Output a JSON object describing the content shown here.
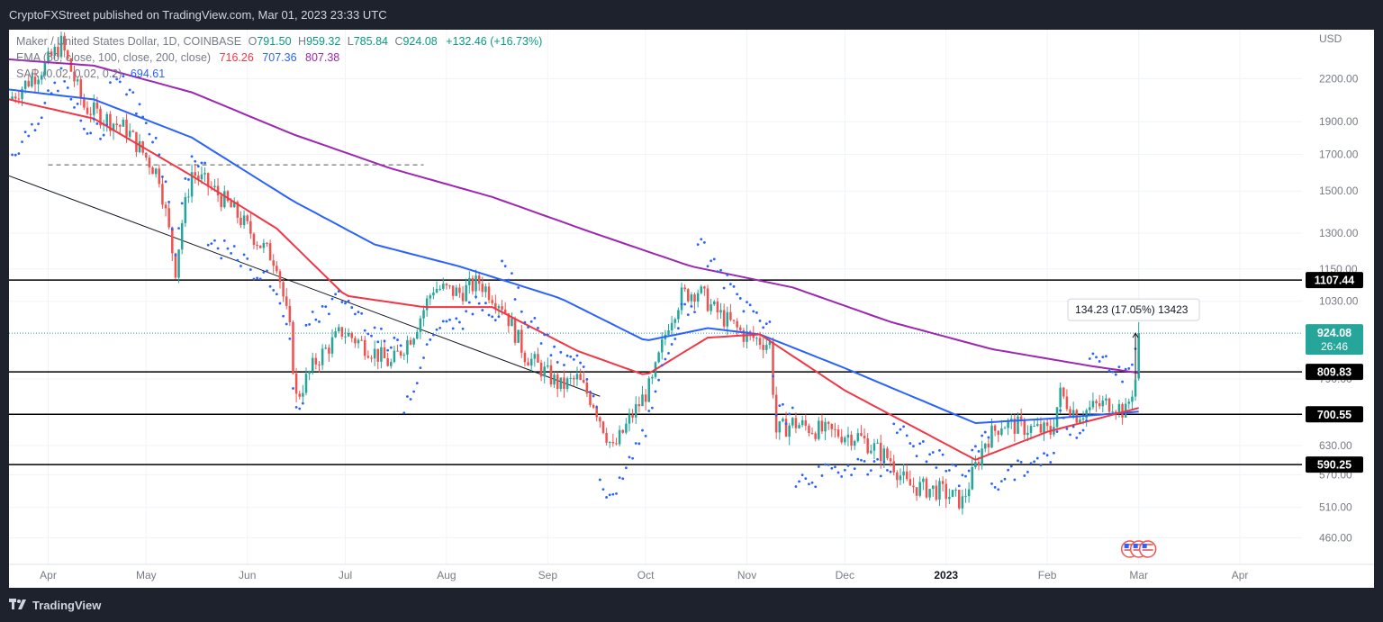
{
  "header": {
    "published_line": "CryptoFXStreet published on TradingView.com, Mar 01, 2023 23:33 UTC"
  },
  "footer": {
    "brand": "TradingView"
  },
  "colors": {
    "up": "#26a69a",
    "down": "#ef5350",
    "ema50": "#f23645",
    "ema100": "#2962ff",
    "ema200": "#9c27b0",
    "sar": "#2962ff",
    "level_line": "#000000",
    "text": "#131722",
    "muted": "#787b86"
  },
  "chart_data": {
    "type": "candlestick",
    "symbol_line": {
      "name": "Maker / United States Dollar, 1D, COINBASE",
      "o_label": "O",
      "o": "791.50",
      "h_label": "H",
      "h": "959.32",
      "l_label": "L",
      "l": "785.84",
      "c_label": "C",
      "c": "924.08",
      "change": "+132.46 (+16.73%)"
    },
    "indicators": [
      {
        "label": "EMA (50, close, 100, close, 200, close)",
        "values": [
          "716.26",
          "707.36",
          "807.38"
        ],
        "colors": [
          "#f23645",
          "#2962ff",
          "#9c27b0"
        ]
      },
      {
        "label": "SAR (0.02, 0.02, 0.2)",
        "values": [
          "694.61"
        ],
        "colors": [
          "#2962ff"
        ]
      }
    ],
    "currency": "USD",
    "y_scale": "log",
    "ylim": [
      420,
      2600
    ],
    "x_start_date": "2022-03-20",
    "x_end_date": "2023-04-20",
    "y_ticks": [
      "460.00",
      "510.00",
      "570.00",
      "630.00",
      "790.00",
      "1030.00",
      "1150.00",
      "1300.00",
      "1500.00",
      "1700.00",
      "1900.00",
      "2200.00"
    ],
    "x_ticks": [
      {
        "label": "Apr",
        "date": "2022-04-01"
      },
      {
        "label": "May",
        "date": "2022-05-01"
      },
      {
        "label": "Jun",
        "date": "2022-06-01"
      },
      {
        "label": "Jul",
        "date": "2022-07-01"
      },
      {
        "label": "Aug",
        "date": "2022-08-01"
      },
      {
        "label": "Sep",
        "date": "2022-09-01"
      },
      {
        "label": "Oct",
        "date": "2022-10-01"
      },
      {
        "label": "Nov",
        "date": "2022-11-01"
      },
      {
        "label": "Dec",
        "date": "2022-12-01"
      },
      {
        "label": "2023",
        "date": "2023-01-01",
        "bold": true
      },
      {
        "label": "Feb",
        "date": "2023-02-01"
      },
      {
        "label": "Mar",
        "date": "2023-03-01"
      },
      {
        "label": "Apr",
        "date": "2023-04-01"
      }
    ],
    "horizontal_levels": [
      {
        "value": 1107.44,
        "label": "1107.44"
      },
      {
        "value": 809.83,
        "label": "809.83"
      },
      {
        "value": 700.55,
        "label": "700.55"
      },
      {
        "value": 590.25,
        "label": "590.25"
      }
    ],
    "last_price": {
      "value": 924.08,
      "label": "924.08",
      "countdown": "26:46"
    },
    "dashed_level": {
      "value": 1640,
      "from": "2022-04-01",
      "to": "2022-07-25"
    },
    "trendline": {
      "from": {
        "date": "2022-03-20",
        "value": 1580
      },
      "to": {
        "date": "2022-09-17",
        "value": 745
      }
    },
    "measure": {
      "text": "134.23 (17.05%) 13423",
      "date": "2023-02-28",
      "from": 790,
      "to": 924
    },
    "anchor_points": [
      [
        "2022-03-20",
        2050
      ],
      [
        "2022-03-31",
        2300
      ],
      [
        "2022-04-05",
        2480
      ],
      [
        "2022-04-12",
        2000
      ],
      [
        "2022-04-25",
        1850
      ],
      [
        "2022-05-05",
        1580
      ],
      [
        "2022-05-10",
        1150
      ],
      [
        "2022-05-12",
        1350
      ],
      [
        "2022-05-15",
        1600
      ],
      [
        "2022-05-22",
        1500
      ],
      [
        "2022-05-28",
        1400
      ],
      [
        "2022-06-05",
        1250
      ],
      [
        "2022-06-10",
        1180
      ],
      [
        "2022-06-14",
        930
      ],
      [
        "2022-06-16",
        740
      ],
      [
        "2022-06-22",
        840
      ],
      [
        "2022-06-30",
        930
      ],
      [
        "2022-07-08",
        880
      ],
      [
        "2022-07-15",
        830
      ],
      [
        "2022-07-22",
        930
      ],
      [
        "2022-07-28",
        1080
      ],
      [
        "2022-08-05",
        1060
      ],
      [
        "2022-08-11",
        1100
      ],
      [
        "2022-08-18",
        1020
      ],
      [
        "2022-08-25",
        860
      ],
      [
        "2022-09-05",
        770
      ],
      [
        "2022-09-10",
        790
      ],
      [
        "2022-09-15",
        730
      ],
      [
        "2022-09-21",
        620
      ],
      [
        "2022-09-27",
        700
      ],
      [
        "2022-10-03",
        780
      ],
      [
        "2022-10-08",
        960
      ],
      [
        "2022-10-12",
        1050
      ],
      [
        "2022-10-17",
        1070
      ],
      [
        "2022-10-22",
        1000
      ],
      [
        "2022-10-31",
        920
      ],
      [
        "2022-11-08",
        890
      ],
      [
        "2022-11-10",
        660
      ],
      [
        "2022-11-15",
        680
      ],
      [
        "2022-11-25",
        660
      ],
      [
        "2022-12-05",
        650
      ],
      [
        "2022-12-15",
        600
      ],
      [
        "2022-12-20",
        550
      ],
      [
        "2022-12-30",
        540
      ],
      [
        "2023-01-06",
        520
      ],
      [
        "2023-01-13",
        640
      ],
      [
        "2023-01-18",
        680
      ],
      [
        "2023-01-25",
        670
      ],
      [
        "2023-02-02",
        660
      ],
      [
        "2023-02-05",
        750
      ],
      [
        "2023-02-10",
        700
      ],
      [
        "2023-02-16",
        720
      ],
      [
        "2023-02-21",
        730
      ],
      [
        "2023-02-25",
        705
      ],
      [
        "2023-02-28",
        790
      ],
      [
        "2023-03-01",
        924
      ]
    ],
    "ema200_points": [
      [
        "2022-03-20",
        2350
      ],
      [
        "2022-04-15",
        2300
      ],
      [
        "2022-05-15",
        2100
      ],
      [
        "2022-06-15",
        1820
      ],
      [
        "2022-07-15",
        1620
      ],
      [
        "2022-08-15",
        1470
      ],
      [
        "2022-09-15",
        1300
      ],
      [
        "2022-10-15",
        1160
      ],
      [
        "2022-11-15",
        1080
      ],
      [
        "2022-12-15",
        960
      ],
      [
        "2023-01-15",
        875
      ],
      [
        "2023-02-15",
        825
      ],
      [
        "2023-03-01",
        807
      ]
    ],
    "ema100_points": [
      [
        "2022-03-20",
        2120
      ],
      [
        "2022-04-15",
        2050
      ],
      [
        "2022-05-15",
        1800
      ],
      [
        "2022-06-15",
        1450
      ],
      [
        "2022-07-10",
        1250
      ],
      [
        "2022-08-05",
        1160
      ],
      [
        "2022-09-05",
        1040
      ],
      [
        "2022-10-01",
        900
      ],
      [
        "2022-10-20",
        940
      ],
      [
        "2022-11-05",
        920
      ],
      [
        "2022-12-01",
        820
      ],
      [
        "2023-01-10",
        680
      ],
      [
        "2023-02-01",
        690
      ],
      [
        "2023-03-01",
        707
      ]
    ],
    "ema50_points": [
      [
        "2022-03-20",
        2050
      ],
      [
        "2022-04-15",
        1920
      ],
      [
        "2022-05-15",
        1580
      ],
      [
        "2022-06-10",
        1320
      ],
      [
        "2022-07-01",
        1050
      ],
      [
        "2022-07-25",
        1010
      ],
      [
        "2022-08-15",
        1010
      ],
      [
        "2022-09-10",
        870
      ],
      [
        "2022-10-01",
        800
      ],
      [
        "2022-10-20",
        910
      ],
      [
        "2022-11-05",
        920
      ],
      [
        "2022-12-01",
        760
      ],
      [
        "2023-01-10",
        600
      ],
      [
        "2023-02-01",
        660
      ],
      [
        "2023-03-01",
        716
      ]
    ]
  }
}
